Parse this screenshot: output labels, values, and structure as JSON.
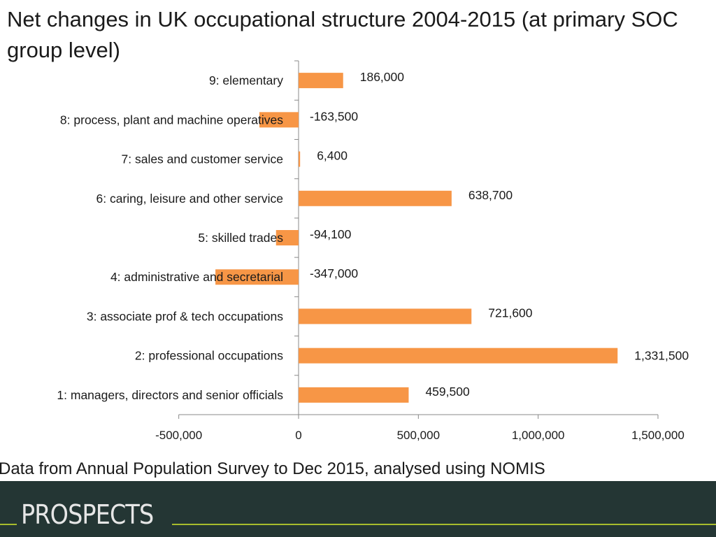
{
  "title": "Net changes in UK occupational structure 2004-2015 (at primary SOC group level)",
  "source": "Data from Annual Population Survey to Dec 2015, analysed using NOMIS",
  "logo": {
    "text": "PROSPECTS"
  },
  "colors": {
    "bar": "#F79646",
    "footer": "#243634",
    "logo_line": "#A8BD2C"
  },
  "chart_data": {
    "type": "bar",
    "orientation": "horizontal",
    "title": "Net changes in UK occupational structure 2004-2015 (at primary SOC group level)",
    "xlabel": "",
    "ylabel": "",
    "xlim": [
      -500000,
      1500000
    ],
    "x_ticks": [
      -500000,
      0,
      500000,
      1000000,
      1500000
    ],
    "x_tick_labels": [
      "-500,000",
      "0",
      "500,000",
      "1,000,000",
      "1,500,000"
    ],
    "grid": false,
    "categories": [
      "9: elementary",
      "8: process, plant and machine operatives",
      "7: sales and customer service",
      "6: caring, leisure and other service",
      "5: skilled trades",
      "4: administrative and secretarial",
      "3: associate prof & tech occupations",
      "2: professional occupations",
      "1: managers, directors and senior officials"
    ],
    "values": [
      186000,
      -163500,
      6400,
      638700,
      -94100,
      -347000,
      721600,
      1331500,
      459500
    ],
    "data_labels": [
      "186,000",
      "-163,500",
      "6,400",
      "638,700",
      "-94,100",
      "-347,000",
      "721,600",
      "1,331,500",
      "459,500"
    ]
  }
}
